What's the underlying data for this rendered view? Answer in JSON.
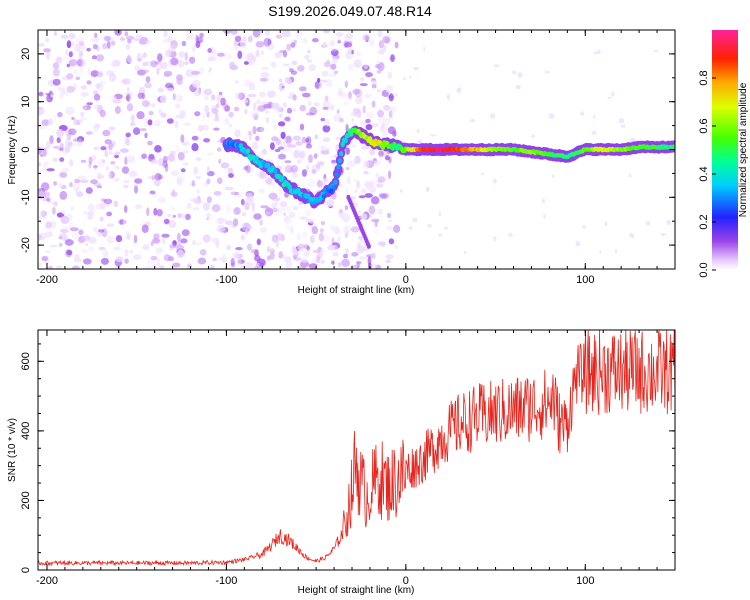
{
  "title": "S199.2026.049.07.48.R14",
  "chart_data": [
    {
      "type": "heatmap",
      "xlabel": "Height of straight line (km)",
      "ylabel": "Frequency (Hz)",
      "xlim": [
        -205,
        150
      ],
      "ylim": [
        -25,
        25
      ],
      "xticks": [
        -200,
        -100,
        0,
        100
      ],
      "yticks": [
        -20,
        -10,
        0,
        10,
        20
      ],
      "colorbar": {
        "label": "Normalized spectral amplitude",
        "range": [
          0,
          1
        ],
        "ticks": [
          0.0,
          0.2,
          0.4,
          0.6,
          0.8
        ]
      },
      "signal_track": {
        "x": [
          -100,
          -95,
          -90,
          -85,
          -80,
          -75,
          -70,
          -65,
          -60,
          -55,
          -50,
          -45,
          -40,
          -35,
          -30,
          -25,
          -20,
          -15,
          -10,
          -5,
          0,
          10,
          20,
          30,
          40,
          50,
          60,
          70,
          80,
          90,
          100,
          110,
          120,
          130,
          140,
          150
        ],
        "f": [
          1,
          1,
          0,
          -2,
          -3,
          -4,
          -6,
          -8,
          -9,
          -10,
          -11,
          -9,
          -8,
          1,
          4,
          3,
          2,
          1,
          1,
          0.5,
          0,
          0,
          0,
          0,
          0,
          0,
          0,
          -0.5,
          -1,
          -1.5,
          0,
          0,
          0,
          0.5,
          0.5,
          0.5
        ],
        "amplitude": [
          0.3,
          0.3,
          0.35,
          0.4,
          0.35,
          0.35,
          0.4,
          0.4,
          0.35,
          0.35,
          0.35,
          0.3,
          0.3,
          0.35,
          0.5,
          0.6,
          0.65,
          0.7,
          0.55,
          0.45,
          0.6,
          0.9,
          0.95,
          0.85,
          0.75,
          0.6,
          0.55,
          0.6,
          0.5,
          0.45,
          0.55,
          0.7,
          0.6,
          0.55,
          0.5,
          0.45
        ]
      }
    },
    {
      "type": "line",
      "xlabel": "Height of straight line (km)",
      "ylabel": "SNR (10 * v/v)",
      "xlim": [
        -205,
        150
      ],
      "ylim": [
        0,
        690
      ],
      "xticks": [
        -200,
        -100,
        0,
        100
      ],
      "yticks": [
        0,
        200,
        400,
        600
      ],
      "series": [
        {
          "name": "SNR",
          "color": "#e8241c",
          "x": [
            -205,
            -180,
            -160,
            -140,
            -120,
            -100,
            -90,
            -80,
            -75,
            -70,
            -65,
            -60,
            -55,
            -50,
            -45,
            -40,
            -35,
            -30,
            -28,
            -25,
            -22,
            -20,
            -15,
            -10,
            -5,
            0,
            5,
            10,
            15,
            20,
            25,
            30,
            35,
            40,
            45,
            50,
            55,
            60,
            65,
            70,
            75,
            80,
            82,
            85,
            88,
            90,
            92,
            95,
            97,
            100,
            110,
            120,
            130,
            140,
            150
          ],
          "y": [
            20,
            20,
            20,
            20,
            20,
            22,
            30,
            45,
            70,
            100,
            85,
            60,
            35,
            25,
            35,
            60,
            110,
            230,
            310,
            250,
            210,
            230,
            270,
            240,
            260,
            285,
            300,
            320,
            350,
            380,
            400,
            420,
            430,
            440,
            445,
            450,
            455,
            460,
            465,
            470,
            475,
            480,
            500,
            430,
            415,
            425,
            480,
            565,
            560,
            570,
            570,
            570,
            570,
            570,
            570
          ]
        }
      ]
    }
  ]
}
